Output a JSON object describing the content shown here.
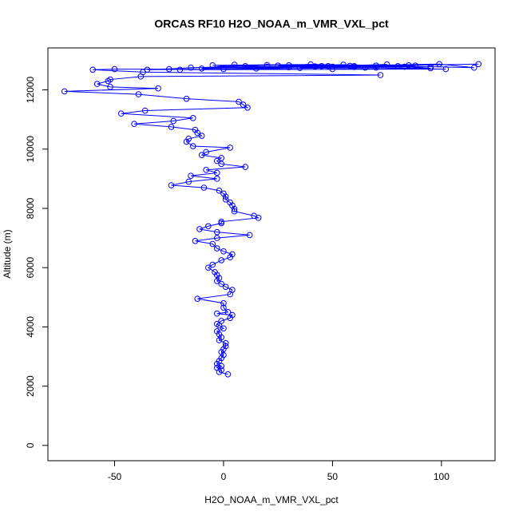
{
  "chart_data": {
    "type": "line",
    "title": "ORCAS RF10 H2O_NOAA_m_VMR_VXL_pct",
    "xlabel": "H2O_NOAA_m_VMR_VXL_pct",
    "ylabel": "Altitude (m)",
    "color": "#0000ff",
    "markers": true,
    "xlim": [
      -80.6,
      124.6
    ],
    "ylim": [
      -516,
      13416
    ],
    "xticks": [
      -50,
      0,
      50,
      100
    ],
    "yticks": [
      0,
      2000,
      4000,
      6000,
      8000,
      10000,
      12000
    ],
    "x": [
      2,
      -2,
      -1,
      -3,
      -1,
      -3,
      -2,
      -1,
      0,
      -1,
      0,
      1,
      1,
      -2,
      -1,
      -2,
      -3,
      0,
      -2,
      -3,
      -1,
      3,
      4,
      -3,
      2,
      0,
      0,
      -12,
      3,
      4,
      1,
      -1,
      -3,
      -2,
      -3,
      -4,
      -7,
      -5,
      -1,
      3,
      4,
      0,
      -3,
      -5,
      -13,
      -3,
      12,
      -3,
      -11,
      -7,
      -1,
      -1,
      16,
      14,
      5,
      5,
      4,
      3,
      1,
      1,
      0,
      -2,
      -9,
      -24,
      -16,
      -3,
      -15,
      -3,
      -8,
      10,
      -1,
      -3,
      -1,
      -10,
      -8,
      3,
      -14,
      -17,
      -16,
      -10,
      -12,
      -13,
      -24,
      -41,
      -23,
      -14,
      -47,
      -36,
      11,
      9,
      7,
      -17,
      -39,
      -73,
      -30,
      -52,
      -58,
      -53,
      -52,
      -38,
      72,
      -37,
      -60,
      -50,
      -25,
      -15,
      20,
      60,
      85,
      117,
      30,
      45,
      99,
      115,
      70,
      50,
      10,
      -5,
      40,
      80,
      65,
      25,
      55,
      95,
      35,
      75,
      15,
      5,
      -10,
      48,
      88,
      60,
      30,
      102,
      -20,
      70,
      42,
      0,
      -35,
      20,
      58,
      83,
      95,
      50
    ],
    "values": [
      2400,
      2480,
      2550,
      2620,
      2680,
      2750,
      2850,
      2950,
      3050,
      3150,
      3250,
      3350,
      3450,
      3550,
      3650,
      3750,
      3850,
      3950,
      4050,
      4100,
      4200,
      4300,
      4400,
      4450,
      4500,
      4650,
      4800,
      4950,
      5100,
      5250,
      5350,
      5450,
      5550,
      5650,
      5750,
      5850,
      6000,
      6100,
      6250,
      6350,
      6450,
      6550,
      6650,
      6800,
      6900,
      7000,
      7100,
      7200,
      7300,
      7400,
      7500,
      7550,
      7680,
      7750,
      7900,
      7980,
      8100,
      8200,
      8300,
      8400,
      8500,
      8600,
      8700,
      8780,
      8900,
      9000,
      9100,
      9200,
      9300,
      9400,
      9500,
      9600,
      9700,
      9800,
      9900,
      10050,
      10100,
      10250,
      10350,
      10450,
      10550,
      10650,
      10750,
      10850,
      10950,
      11050,
      11200,
      11300,
      11400,
      11500,
      11600,
      11700,
      11850,
      11950,
      12050,
      12100,
      12200,
      12300,
      12350,
      12450,
      12500,
      12600,
      12680,
      12700,
      12700,
      12750,
      12780,
      12800,
      12830,
      12870,
      12760,
      12800,
      12870,
      12750,
      12820,
      12780,
      12800,
      12830,
      12860,
      12800,
      12750,
      12820,
      12850,
      12780,
      12740,
      12860,
      12720,
      12850,
      12720,
      12800,
      12820,
      12770,
      12830,
      12700,
      12680,
      12750,
      12790,
      12700,
      12680,
      12840,
      12810,
      12780,
      12730,
      12700
    ]
  }
}
